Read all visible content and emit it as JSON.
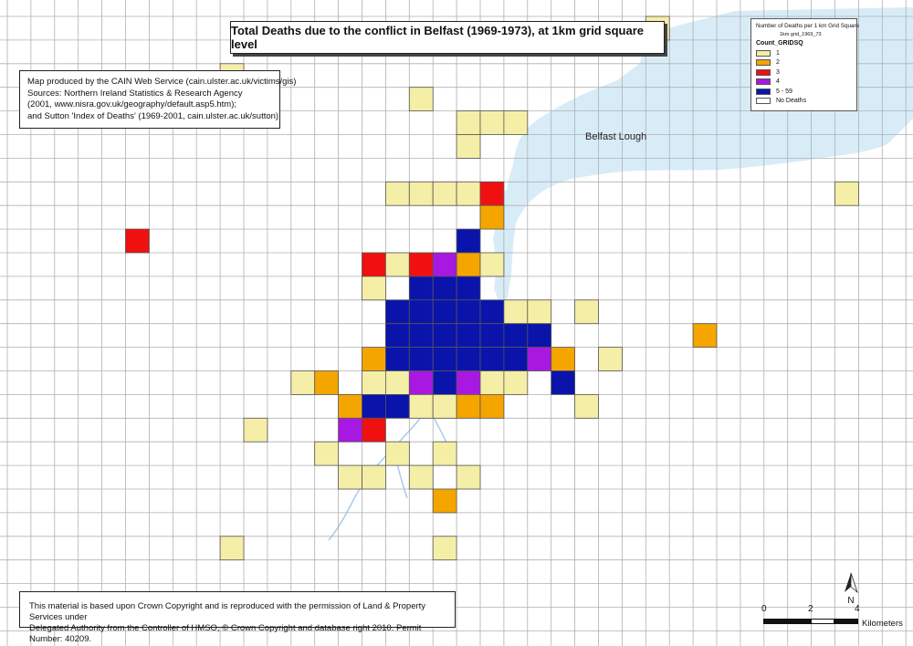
{
  "title": "Total Deaths due to the conflict in Belfast (1969-1973), at 1km grid square level",
  "credit_lines": [
    "Map produced by the CAIN Web Service (cain.ulster.ac.uk/victims/gis)",
    "Sources: Northern Ireland Statistics & Research Agency",
    "(2001, www.nisra.gov.uk/geography/default.asp5.htm);",
    "and Sutton 'Index of Deaths' (1969-2001, cain.ulster.ac.uk/sutton)"
  ],
  "copyright_lines": [
    "This material is based upon Crown Copyright and is reproduced with the permission of Land & Property Services under",
    "Delegated Authority from the Controller of HMSO, © Crown Copyright and database right 2010. Permit Number: 40209."
  ],
  "lough_label": "Belfast Lough",
  "legend": {
    "title": "Number of Deaths per 1 km Grid Square",
    "subtitle": "1km grid_1969_73",
    "field": "Count_GRIDSQ",
    "items": [
      {
        "label": "1",
        "color": "#f5eea6"
      },
      {
        "label": "2",
        "color": "#f5a500"
      },
      {
        "label": "3",
        "color": "#f01010"
      },
      {
        "label": "4",
        "color": "#a818e0"
      },
      {
        "label": "5 - 59",
        "color": "#0a14aa"
      },
      {
        "label": "No Deaths",
        "color": "#ffffff"
      }
    ]
  },
  "scale": {
    "labels": [
      "0",
      "2",
      "4"
    ],
    "unit": "Kilometers"
  },
  "north_label": "N",
  "colors": {
    "water": "#d8ecf8",
    "river": "#a9cbe8",
    "grid": "#b0b0b0",
    "cell_border": "#555555"
  },
  "grid_cells": [
    {
      "col": 27,
      "row": 0,
      "cls": 1
    },
    {
      "col": 9,
      "row": 2,
      "cls": 1
    },
    {
      "col": 17,
      "row": 3,
      "cls": 1
    },
    {
      "col": 19,
      "row": 4,
      "cls": 1
    },
    {
      "col": 20,
      "row": 4,
      "cls": 1
    },
    {
      "col": 21,
      "row": 4,
      "cls": 1
    },
    {
      "col": 19,
      "row": 5,
      "cls": 1
    },
    {
      "col": 16,
      "row": 7,
      "cls": 1
    },
    {
      "col": 17,
      "row": 7,
      "cls": 1
    },
    {
      "col": 18,
      "row": 7,
      "cls": 1
    },
    {
      "col": 19,
      "row": 7,
      "cls": 1
    },
    {
      "col": 20,
      "row": 7,
      "cls": 3
    },
    {
      "col": 35,
      "row": 7,
      "cls": 1
    },
    {
      "col": 20,
      "row": 8,
      "cls": 2
    },
    {
      "col": 5,
      "row": 9,
      "cls": 3
    },
    {
      "col": 19,
      "row": 9,
      "cls": 5
    },
    {
      "col": 15,
      "row": 10,
      "cls": 3
    },
    {
      "col": 16,
      "row": 10,
      "cls": 1
    },
    {
      "col": 17,
      "row": 10,
      "cls": 3
    },
    {
      "col": 18,
      "row": 10,
      "cls": 4
    },
    {
      "col": 19,
      "row": 10,
      "cls": 2
    },
    {
      "col": 20,
      "row": 10,
      "cls": 1
    },
    {
      "col": 15,
      "row": 11,
      "cls": 1
    },
    {
      "col": 17,
      "row": 11,
      "cls": 5
    },
    {
      "col": 18,
      "row": 11,
      "cls": 5
    },
    {
      "col": 19,
      "row": 11,
      "cls": 5
    },
    {
      "col": 16,
      "row": 12,
      "cls": 5
    },
    {
      "col": 17,
      "row": 12,
      "cls": 5
    },
    {
      "col": 18,
      "row": 12,
      "cls": 5
    },
    {
      "col": 19,
      "row": 12,
      "cls": 5
    },
    {
      "col": 20,
      "row": 12,
      "cls": 5
    },
    {
      "col": 21,
      "row": 12,
      "cls": 1
    },
    {
      "col": 22,
      "row": 12,
      "cls": 1
    },
    {
      "col": 24,
      "row": 12,
      "cls": 1
    },
    {
      "col": 16,
      "row": 13,
      "cls": 5
    },
    {
      "col": 17,
      "row": 13,
      "cls": 5
    },
    {
      "col": 18,
      "row": 13,
      "cls": 5
    },
    {
      "col": 19,
      "row": 13,
      "cls": 5
    },
    {
      "col": 20,
      "row": 13,
      "cls": 5
    },
    {
      "col": 21,
      "row": 13,
      "cls": 5
    },
    {
      "col": 22,
      "row": 13,
      "cls": 5
    },
    {
      "col": 29,
      "row": 13,
      "cls": 2
    },
    {
      "col": 15,
      "row": 14,
      "cls": 2
    },
    {
      "col": 16,
      "row": 14,
      "cls": 5
    },
    {
      "col": 17,
      "row": 14,
      "cls": 5
    },
    {
      "col": 18,
      "row": 14,
      "cls": 5
    },
    {
      "col": 19,
      "row": 14,
      "cls": 5
    },
    {
      "col": 20,
      "row": 14,
      "cls": 5
    },
    {
      "col": 21,
      "row": 14,
      "cls": 5
    },
    {
      "col": 22,
      "row": 14,
      "cls": 4
    },
    {
      "col": 23,
      "row": 14,
      "cls": 2
    },
    {
      "col": 25,
      "row": 14,
      "cls": 1
    },
    {
      "col": 12,
      "row": 15,
      "cls": 1
    },
    {
      "col": 13,
      "row": 15,
      "cls": 2
    },
    {
      "col": 15,
      "row": 15,
      "cls": 1
    },
    {
      "col": 16,
      "row": 15,
      "cls": 1
    },
    {
      "col": 17,
      "row": 15,
      "cls": 4
    },
    {
      "col": 18,
      "row": 15,
      "cls": 5
    },
    {
      "col": 19,
      "row": 15,
      "cls": 4
    },
    {
      "col": 20,
      "row": 15,
      "cls": 1
    },
    {
      "col": 21,
      "row": 15,
      "cls": 1
    },
    {
      "col": 23,
      "row": 15,
      "cls": 5
    },
    {
      "col": 14,
      "row": 16,
      "cls": 2
    },
    {
      "col": 15,
      "row": 16,
      "cls": 5
    },
    {
      "col": 16,
      "row": 16,
      "cls": 5
    },
    {
      "col": 17,
      "row": 16,
      "cls": 1
    },
    {
      "col": 18,
      "row": 16,
      "cls": 1
    },
    {
      "col": 19,
      "row": 16,
      "cls": 2
    },
    {
      "col": 20,
      "row": 16,
      "cls": 2
    },
    {
      "col": 24,
      "row": 16,
      "cls": 1
    },
    {
      "col": 10,
      "row": 17,
      "cls": 1
    },
    {
      "col": 14,
      "row": 17,
      "cls": 4
    },
    {
      "col": 15,
      "row": 17,
      "cls": 3
    },
    {
      "col": 13,
      "row": 18,
      "cls": 1
    },
    {
      "col": 16,
      "row": 18,
      "cls": 1
    },
    {
      "col": 18,
      "row": 18,
      "cls": 1
    },
    {
      "col": 14,
      "row": 19,
      "cls": 1
    },
    {
      "col": 15,
      "row": 19,
      "cls": 1
    },
    {
      "col": 17,
      "row": 19,
      "cls": 1
    },
    {
      "col": 19,
      "row": 19,
      "cls": 1
    },
    {
      "col": 18,
      "row": 20,
      "cls": 2
    },
    {
      "col": 9,
      "row": 22,
      "cls": 1
    },
    {
      "col": 18,
      "row": 22,
      "cls": 1
    }
  ]
}
